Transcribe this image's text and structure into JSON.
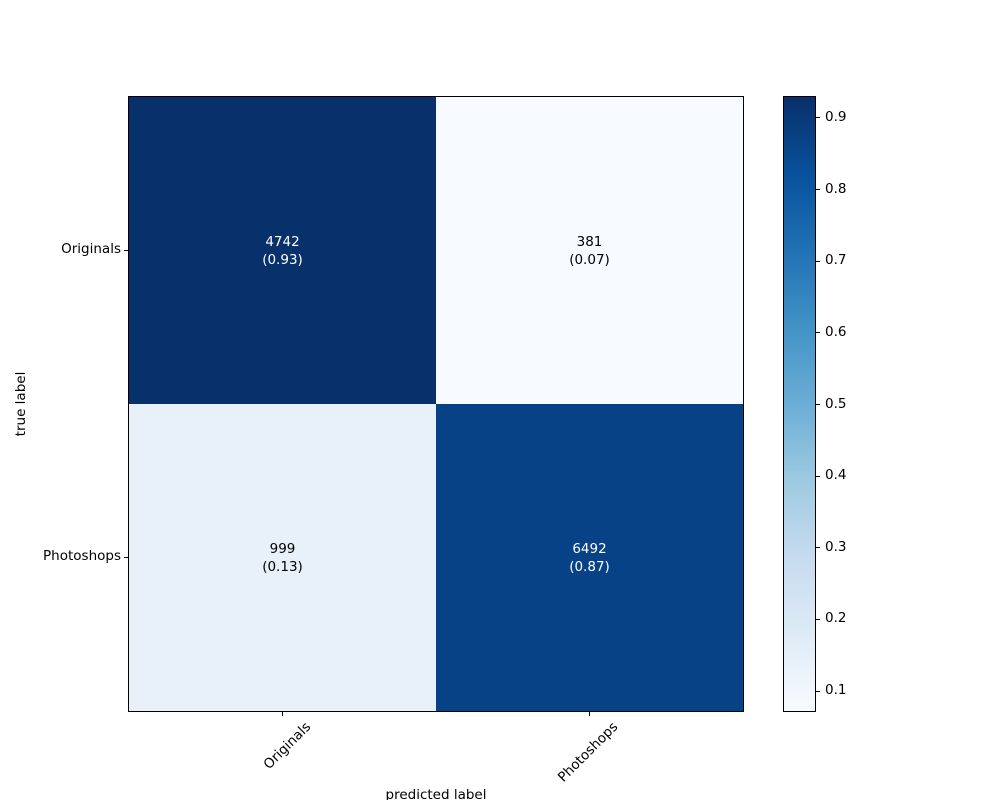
{
  "chart_data": {
    "type": "heatmap",
    "title": "",
    "xlabel": "predicted label",
    "ylabel": "true label",
    "x_categories": [
      "Originals",
      "Photoshops"
    ],
    "y_categories": [
      "Originals",
      "Photoshops"
    ],
    "cells": [
      [
        {
          "count": 4742,
          "fraction": 0.93
        },
        {
          "count": 381,
          "fraction": 0.07
        }
      ],
      [
        {
          "count": 999,
          "fraction": 0.13
        },
        {
          "count": 6492,
          "fraction": 0.87
        }
      ]
    ],
    "cell_colors": [
      [
        "#08306b",
        "#f7fbff"
      ],
      [
        "#e8f1fa",
        "#084286"
      ]
    ],
    "cell_text_colors": [
      [
        "#ffffff",
        "#000000"
      ],
      [
        "#000000",
        "#ffffff"
      ]
    ],
    "colormap": "Blues",
    "vmin": 0.07,
    "vmax": 0.93,
    "colorbar_ticks": [
      0.9,
      0.8,
      0.7,
      0.6,
      0.5,
      0.4,
      0.3,
      0.2,
      0.1
    ],
    "colorbar_gradient_top_to_bottom": [
      "#08306b",
      "#08519c",
      "#2171b5",
      "#4292c6",
      "#6baed6",
      "#9ecae1",
      "#c6dbef",
      "#deebf7",
      "#f7fbff"
    ],
    "legend_position": "right-colorbar",
    "grid": false
  }
}
